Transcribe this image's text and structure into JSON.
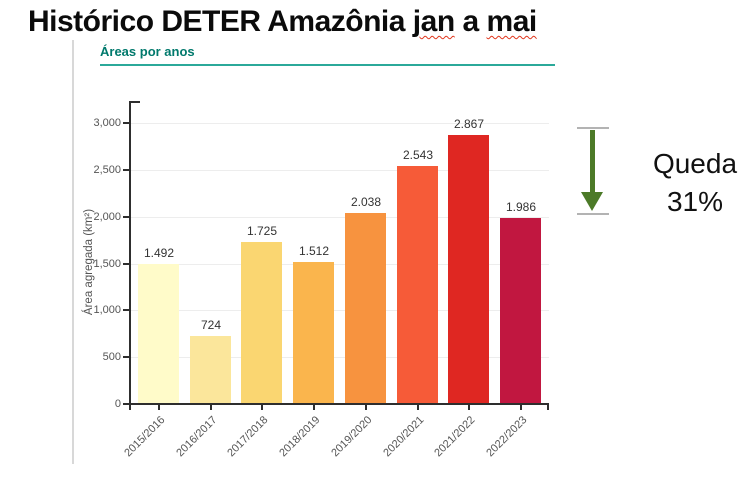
{
  "title": {
    "prefix": "Histórico DETER Amazônia",
    "misspelled_word_1": "jan",
    "connector": "a",
    "misspelled_word_2": "mai"
  },
  "card": {
    "subtitle": "Áreas por anos"
  },
  "chart_data": {
    "type": "bar",
    "title": "Áreas por anos",
    "categories": [
      "2015/2016",
      "2016/2017",
      "2017/2018",
      "2018/2019",
      "2019/2020",
      "2020/2021",
      "2021/2022",
      "2022/2023"
    ],
    "values": [
      1492,
      724,
      1725,
      1512,
      2038,
      2543,
      2867,
      1986
    ],
    "value_labels": [
      "1.492",
      "724",
      "1.725",
      "1.512",
      "2.038",
      "2.543",
      "2.867",
      "1.986"
    ],
    "xlabel": "",
    "ylabel": "Área agregada (km²)",
    "ylim": [
      0,
      3000
    ],
    "yticks": [
      0,
      500,
      1000,
      1500,
      2000,
      2500,
      3000
    ],
    "ytick_labels": [
      "0",
      "500",
      "1,000",
      "1,500",
      "2,000",
      "2,500",
      "3,000"
    ],
    "grid": true,
    "legend_position": "none",
    "bar_colors": [
      "#FFFBC9",
      "#FBE69B",
      "#FAD671",
      "#FAB54D",
      "#F7933F",
      "#F65B38",
      "#DF2722",
      "#C11740"
    ],
    "axis_color": "#2e2e2e",
    "tick_label_color": "#555555"
  },
  "annotation": {
    "line1": "Queda",
    "line2": "31%",
    "arrow_color": "#4C7A28",
    "cap_color": "#b3b3b3"
  }
}
